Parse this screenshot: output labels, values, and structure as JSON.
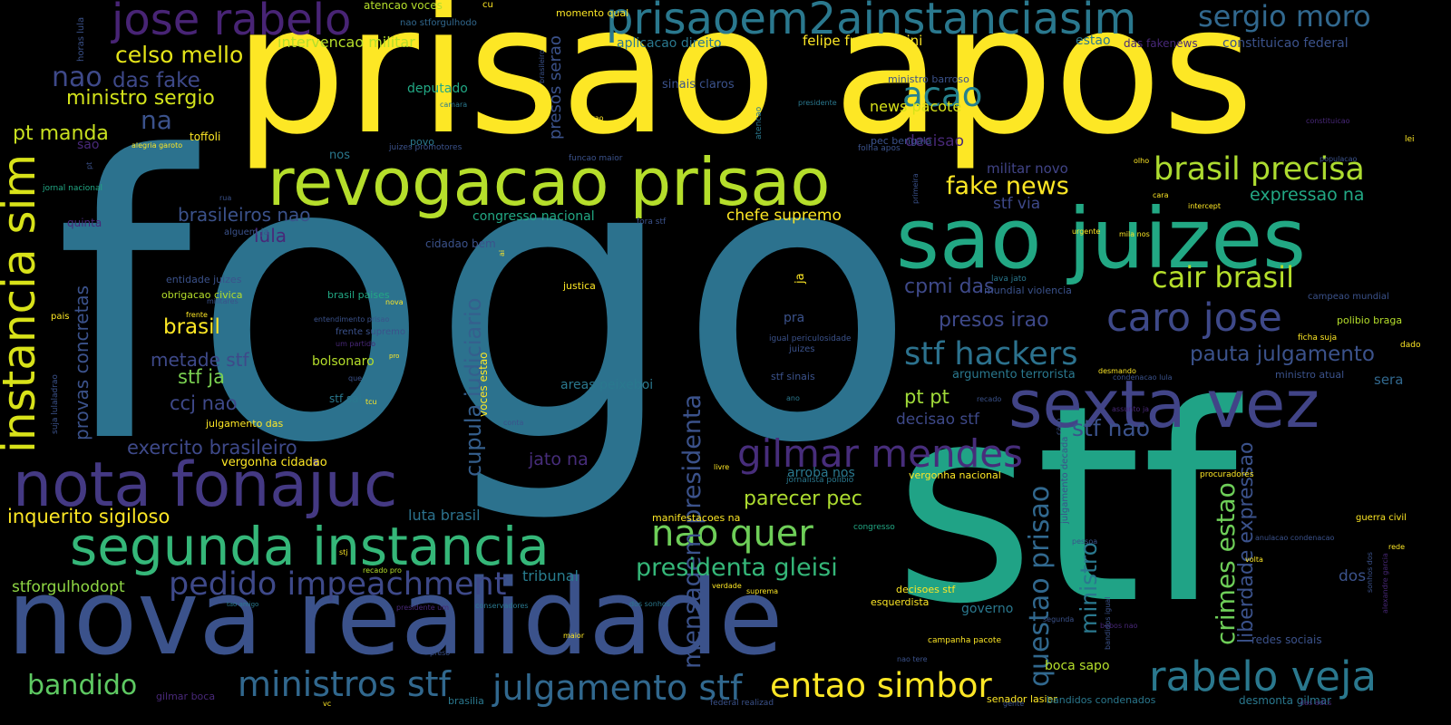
{
  "words": [
    {
      "text": "fogo",
      "color": "#2c728e"
    },
    {
      "text": "stf",
      "color": "#20a386"
    },
    {
      "text": "prisao apos",
      "color": "#fde725"
    },
    {
      "text": "nova realidade",
      "color": "#3b528b"
    },
    {
      "text": "sao juizes",
      "color": "#22a884"
    },
    {
      "text": "revogacao prisao",
      "color": "#b5de2b"
    },
    {
      "text": "prisaoem2ainstanciasim",
      "color": "#2a788e"
    },
    {
      "text": "instancia sim",
      "color": "#d8e219"
    },
    {
      "text": "segunda instancia",
      "color": "#35b779"
    },
    {
      "text": "nota fonajuc",
      "color": "#443983"
    },
    {
      "text": "sexta vez",
      "color": "#414487"
    },
    {
      "text": "jose rabelo",
      "color": "#482475"
    },
    {
      "text": "rabelo veja",
      "color": "#2a788e"
    },
    {
      "text": "caro jose",
      "color": "#3e4989"
    },
    {
      "text": "gilmar mendes",
      "color": "#472d7b"
    },
    {
      "text": "nao quer",
      "color": "#6ece58"
    },
    {
      "text": "ministros stf",
      "color": "#31688e"
    },
    {
      "text": "julgamento stf",
      "color": "#31688e"
    },
    {
      "text": "entao simbor",
      "color": "#fde725"
    },
    {
      "text": "pedido impeachment",
      "color": "#3e4989"
    },
    {
      "text": "brasil precisa",
      "color": "#addc30"
    },
    {
      "text": "stf hackers",
      "color": "#2c728e"
    },
    {
      "text": "acao",
      "color": "#26828e"
    },
    {
      "text": "sergio moro",
      "color": "#31688e"
    },
    {
      "text": "questao prisao",
      "color": "#31688e"
    },
    {
      "text": "mensagem presidenta",
      "color": "#3b528b"
    },
    {
      "text": "cair brasil",
      "color": "#b5de2b"
    },
    {
      "text": "presidenta gleisi",
      "color": "#35b779"
    },
    {
      "text": "cupula judiciario",
      "color": "#355f8d"
    },
    {
      "text": "crimes estao",
      "color": "#6ece58"
    },
    {
      "text": "fake news",
      "color": "#fde725"
    },
    {
      "text": "bandido",
      "color": "#5ec962"
    },
    {
      "text": "pauta julgamento",
      "color": "#3b528b"
    },
    {
      "text": "stf nao",
      "color": "#3b528b"
    },
    {
      "text": "ministro",
      "color": "#2a788e"
    },
    {
      "text": "presos irao",
      "color": "#3e4989"
    },
    {
      "text": "cpmi das",
      "color": "#3e4989"
    },
    {
      "text": "liberdade expressao",
      "color": "#3b528b"
    },
    {
      "text": "nao",
      "color": "#3e4989"
    },
    {
      "text": "das fake",
      "color": "#3e4989"
    },
    {
      "text": "na",
      "color": "#3b528b"
    },
    {
      "text": "celso mello",
      "color": "#e5e419"
    },
    {
      "text": "ministro sergio",
      "color": "#d2e21b"
    },
    {
      "text": "pt manda",
      "color": "#c8e020"
    },
    {
      "text": "brasil",
      "color": "#fde725"
    },
    {
      "text": "provas concretas",
      "color": "#3b528b"
    },
    {
      "text": "exercito brasileiro",
      "color": "#3e4989"
    },
    {
      "text": "inquerito sigiloso",
      "color": "#fde725"
    },
    {
      "text": "metade stf",
      "color": "#3e4989"
    },
    {
      "text": "stf ja",
      "color": "#7ad151"
    },
    {
      "text": "ccj nao",
      "color": "#3e4989"
    },
    {
      "text": "brasileiros nao",
      "color": "#3b528b"
    },
    {
      "text": "lula",
      "color": "#482878"
    },
    {
      "text": "parecer pec",
      "color": "#addc30"
    },
    {
      "text": "pt pt",
      "color": "#a0da39"
    },
    {
      "text": "decisao stf",
      "color": "#3e4989"
    },
    {
      "text": "expressao na",
      "color": "#22a884"
    },
    {
      "text": "stf via",
      "color": "#3e4989"
    },
    {
      "text": "jato na",
      "color": "#472d7b"
    },
    {
      "text": "tribunal",
      "color": "#287d8e"
    },
    {
      "text": "dos",
      "color": "#3b528b"
    },
    {
      "text": "chefe supremo",
      "color": "#fde725"
    },
    {
      "text": "stforgulhodopt",
      "color": "#8fd744"
    },
    {
      "text": "luta brasil",
      "color": "#2c728e"
    },
    {
      "text": "boca sapo",
      "color": "#b5de2b"
    },
    {
      "text": "presos serao",
      "color": "#3b528b"
    },
    {
      "text": "intervencao militar",
      "color": "#b5de2b"
    },
    {
      "text": "felipe francischini",
      "color": "#fde725"
    },
    {
      "text": "news pacote",
      "color": "#d8e219"
    },
    {
      "text": "decisao",
      "color": "#482878"
    },
    {
      "text": "militar novo",
      "color": "#414487"
    },
    {
      "text": "congresso nacional",
      "color": "#22a884"
    },
    {
      "text": "bolsonaro",
      "color": "#b5de2b"
    },
    {
      "text": "sera",
      "color": "#31688e"
    },
    {
      "text": "deputado",
      "color": "#22a884"
    },
    {
      "text": "areas peixeboi",
      "color": "#2a788e"
    },
    {
      "text": "argumento terrorista",
      "color": "#2a788e"
    },
    {
      "text": "aplicacao direito",
      "color": "#2a788e"
    },
    {
      "text": "constituicao federal",
      "color": "#3b528b"
    },
    {
      "text": "estao",
      "color": "#2a788e"
    },
    {
      "text": "governo",
      "color": "#2a788e"
    },
    {
      "text": "arroba nos",
      "color": "#2a788e"
    },
    {
      "text": "nos",
      "color": "#2a788e"
    },
    {
      "text": "stf sai",
      "color": "#2a788e"
    },
    {
      "text": "pra",
      "color": "#3b528b"
    },
    {
      "text": "ja",
      "color": "#fde725"
    },
    {
      "text": "julgamento das",
      "color": "#fde725"
    },
    {
      "text": "vergonha cidadao",
      "color": "#fde725"
    },
    {
      "text": "atencao voces",
      "color": "#b5de2b"
    },
    {
      "text": "cu",
      "color": "#fde725"
    },
    {
      "text": "momento qual",
      "color": "#fde725"
    },
    {
      "text": "nao stforgulhodo",
      "color": "#31688e"
    },
    {
      "text": "ministro barroso",
      "color": "#3b528b"
    },
    {
      "text": "sinais claros",
      "color": "#3b528b"
    },
    {
      "text": "das fakenews",
      "color": "#482878"
    },
    {
      "text": "pec bengala",
      "color": "#3b528b"
    },
    {
      "text": "toffoli",
      "color": "#fde725"
    },
    {
      "text": "alegria garoto",
      "color": "#fde725"
    },
    {
      "text": "horas lula",
      "color": "#3b528b"
    },
    {
      "text": "sao",
      "color": "#482878"
    },
    {
      "text": "quinta",
      "color": "#482878"
    },
    {
      "text": "jornal nacional",
      "color": "#22a884"
    },
    {
      "text": "alguem ja",
      "color": "#3b528b"
    },
    {
      "text": "entidade juizes",
      "color": "#3b528b"
    },
    {
      "text": "obrigacao civica",
      "color": "#b5de2b"
    },
    {
      "text": "brasil paises",
      "color": "#22a884"
    },
    {
      "text": "justica",
      "color": "#fde725"
    },
    {
      "text": "entendimento prisao",
      "color": "#3b528b"
    },
    {
      "text": "frente supremo",
      "color": "#3b528b"
    },
    {
      "text": "cidadao bem",
      "color": "#3b528b"
    },
    {
      "text": "povo",
      "color": "#2a788e"
    },
    {
      "text": "juizes promotores",
      "color": "#3b528b"
    },
    {
      "text": "funcao maior",
      "color": "#3b528b"
    },
    {
      "text": "fora stf",
      "color": "#3b528b"
    },
    {
      "text": "folha apos",
      "color": "#3b528b"
    },
    {
      "text": "mundial violencia",
      "color": "#3b528b"
    },
    {
      "text": "lava jato",
      "color": "#2a788e"
    },
    {
      "text": "igual periculosidade",
      "color": "#3b528b"
    },
    {
      "text": "juizes",
      "color": "#3b528b"
    },
    {
      "text": "stf sinais",
      "color": "#3b528b"
    },
    {
      "text": "voces estao",
      "color": "#fde725"
    },
    {
      "text": "vergonha nacional",
      "color": "#fde725"
    },
    {
      "text": "jornalista polibio",
      "color": "#2a788e"
    },
    {
      "text": "manifestacoes na",
      "color": "#fde725"
    },
    {
      "text": "senador lasier",
      "color": "#fde725"
    },
    {
      "text": "federal realizad",
      "color": "#3b528b"
    },
    {
      "text": "brasilia",
      "color": "#2a788e"
    },
    {
      "text": "gilmar boca",
      "color": "#482878"
    },
    {
      "text": "campanha pacote",
      "color": "#fde725"
    },
    {
      "text": "decisoes stf",
      "color": "#fde725"
    },
    {
      "text": "esquerdista",
      "color": "#fde725"
    },
    {
      "text": "bandidos condenados",
      "color": "#2a788e"
    },
    {
      "text": "desmonta gilmar",
      "color": "#2a788e"
    },
    {
      "text": "redes sociais",
      "color": "#3b528b"
    },
    {
      "text": "campeao mundial",
      "color": "#3b528b"
    },
    {
      "text": "polibio braga",
      "color": "#b5de2b"
    },
    {
      "text": "ficha suja",
      "color": "#fde725"
    },
    {
      "text": "ministro atual",
      "color": "#3b528b"
    },
    {
      "text": "condenacao lula",
      "color": "#3b528b"
    },
    {
      "text": "anulacao condenacao",
      "color": "#3b528b"
    },
    {
      "text": "guerra civil",
      "color": "#fde725"
    },
    {
      "text": "procuradores",
      "color": "#fde725"
    },
    {
      "text": "pessoa",
      "color": "#3b528b"
    },
    {
      "text": "congresso",
      "color": "#22a884"
    },
    {
      "text": "lei",
      "color": "#fde725"
    },
    {
      "text": "rede",
      "color": "#fde725"
    },
    {
      "text": "dado",
      "color": "#fde725"
    },
    {
      "text": "urgente",
      "color": "#fde725"
    },
    {
      "text": "mila nos",
      "color": "#fde725"
    },
    {
      "text": "intercept",
      "color": "#fde725"
    },
    {
      "text": "cara",
      "color": "#fde725"
    },
    {
      "text": "olho",
      "color": "#fde725"
    },
    {
      "text": "populacao",
      "color": "#3b528b"
    },
    {
      "text": "constituicao",
      "color": "#482878"
    },
    {
      "text": "presidente",
      "color": "#2a788e"
    },
    {
      "text": "camara",
      "color": "#2a788e"
    },
    {
      "text": "vao",
      "color": "#fde725"
    },
    {
      "text": "atencao",
      "color": "#2a788e"
    },
    {
      "text": "brasileiro",
      "color": "#3b528b"
    },
    {
      "text": "primeira",
      "color": "#3b528b"
    },
    {
      "text": "rua",
      "color": "#3b528b"
    },
    {
      "text": "pt",
      "color": "#3b528b"
    },
    {
      "text": "ai",
      "color": "#fde725"
    },
    {
      "text": "militares",
      "color": "#3b528b"
    },
    {
      "text": "frente",
      "color": "#fde725"
    },
    {
      "text": "pais",
      "color": "#fde725"
    },
    {
      "text": "nova",
      "color": "#fde725"
    },
    {
      "text": "um partido",
      "color": "#482878"
    },
    {
      "text": "pro",
      "color": "#fde725"
    },
    {
      "text": "que",
      "color": "#3b528b"
    },
    {
      "text": "tcu",
      "color": "#fde725"
    },
    {
      "text": "ano",
      "color": "#2a788e"
    },
    {
      "text": "conta",
      "color": "#3b528b"
    },
    {
      "text": "desmando",
      "color": "#fde725"
    },
    {
      "text": "recado",
      "color": "#3b528b"
    },
    {
      "text": "assunto ja",
      "color": "#482878"
    },
    {
      "text": "caso",
      "color": "#3b528b"
    },
    {
      "text": "livre",
      "color": "#fde725"
    },
    {
      "text": "stj",
      "color": "#fde725"
    },
    {
      "text": "recado pro",
      "color": "#b5de2b"
    },
    {
      "text": "segunda",
      "color": "#3b528b"
    },
    {
      "text": "tao amigo",
      "color": "#2a788e"
    },
    {
      "text": "presidente um",
      "color": "#482878"
    },
    {
      "text": "conservadores",
      "color": "#2a788e"
    },
    {
      "text": "dos sonhos",
      "color": "#2a788e"
    },
    {
      "text": "verdade",
      "color": "#fde725"
    },
    {
      "text": "suprema",
      "color": "#fde725"
    },
    {
      "text": "volta",
      "color": "#fde725"
    },
    {
      "text": "maior",
      "color": "#fde725"
    },
    {
      "text": "preso",
      "color": "#3b528b"
    },
    {
      "text": "nao tere",
      "color": "#3b528b"
    },
    {
      "text": "gente",
      "color": "#3b528b"
    },
    {
      "text": "vc",
      "color": "#fde725"
    },
    {
      "text": "bobos nao",
      "color": "#482878"
    },
    {
      "text": "das adcs",
      "color": "#482878"
    },
    {
      "text": "bandidos igual",
      "color": "#3b528b"
    },
    {
      "text": "sonhos dos",
      "color": "#3b528b"
    },
    {
      "text": "alexandre garcia",
      "color": "#482878"
    },
    {
      "text": "julgamento decada",
      "color": "#3b528b"
    },
    {
      "text": "suja lulaladrao",
      "color": "#3b528b"
    }
  ]
}
